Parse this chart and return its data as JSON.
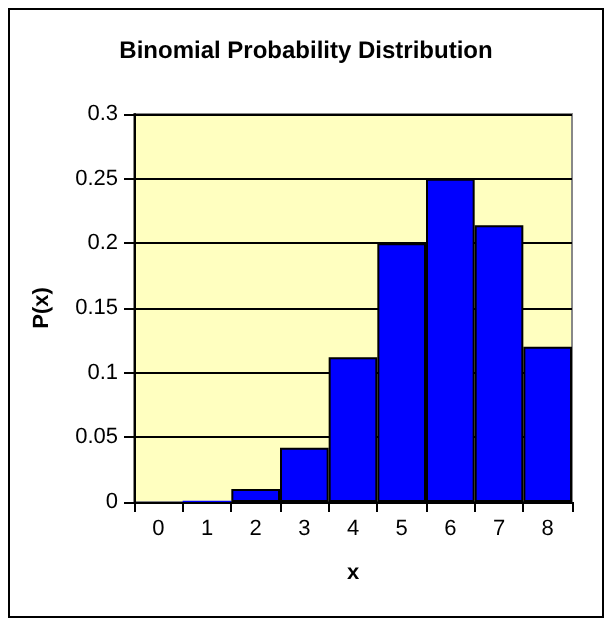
{
  "chart_data": {
    "type": "bar",
    "title": "Binomial Probability Distribution",
    "xlabel": "x",
    "ylabel": "P(x)",
    "categories": [
      "0",
      "1",
      "2",
      "3",
      "4",
      "5",
      "6",
      "7",
      "8"
    ],
    "values": [
      null,
      0.001,
      0.01,
      0.042,
      0.112,
      0.2,
      0.25,
      0.214,
      0.12
    ],
    "color": "#0000ff",
    "ylim": [
      0,
      0.3
    ],
    "yticks": [
      0,
      0.05,
      0.1,
      0.15,
      0.2,
      0.25,
      0.3
    ],
    "grid": "y"
  }
}
